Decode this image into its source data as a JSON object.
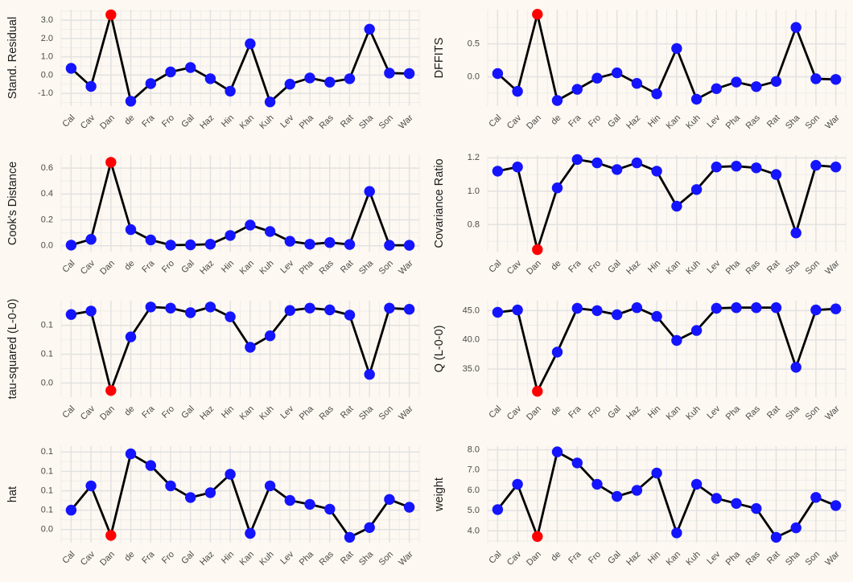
{
  "page": {
    "background_color": "#fdf8f1",
    "description": "Grid of 8 leave-one-out influence diagnostic line plots with one highlighted case (Dan)"
  },
  "style": {
    "point_color": "#1414ff",
    "highlight_color": "#ff0000",
    "line_color": "#000000",
    "grid_major_color": "#e2e2e2",
    "grid_minor_color": "#ededed",
    "tick_label_color": "#4a4a4a",
    "axis_title_color": "#1a1a1a"
  },
  "highlight_category": "Dan",
  "categories": [
    "Cal",
    "Cav",
    "Dan",
    "de",
    "Fra",
    "Fro",
    "Gal",
    "Haz",
    "Hin",
    "Kan",
    "Kuh",
    "Lev",
    "Pha",
    "Ras",
    "Rat",
    "Sha",
    "Son",
    "War"
  ],
  "chart_data": [
    {
      "type": "line",
      "ylabel": "Stand. Residual",
      "categories": [
        "Cal",
        "Cav",
        "Dan",
        "de",
        "Fra",
        "Fro",
        "Gal",
        "Haz",
        "Hin",
        "Kan",
        "Kuh",
        "Lev",
        "Pha",
        "Ras",
        "Rat",
        "Sha",
        "Son",
        "War"
      ],
      "values": [
        0.37,
        -0.62,
        3.3,
        -1.43,
        -0.47,
        0.17,
        0.41,
        -0.2,
        -0.88,
        1.71,
        -1.47,
        -0.5,
        -0.16,
        -0.39,
        -0.2,
        2.51,
        0.11,
        0.08
      ],
      "highlight_index": 2,
      "yticks": [
        {
          "v": -1,
          "label": "-1.0"
        },
        {
          "v": 0,
          "label": "0.0"
        },
        {
          "v": 1,
          "label": "1.0"
        },
        {
          "v": 2,
          "label": "2.0"
        },
        {
          "v": 3,
          "label": "3.0"
        }
      ],
      "ylim": [
        -1.7,
        3.58
      ],
      "grid": true,
      "legend": false
    },
    {
      "type": "line",
      "ylabel": "DFFITS",
      "categories": [
        "Cal",
        "Cav",
        "Dan",
        "de",
        "Fra",
        "Fro",
        "Gal",
        "Haz",
        "Hin",
        "Kan",
        "Kuh",
        "Lev",
        "Pha",
        "Ras",
        "Rat",
        "Sha",
        "Son",
        "War"
      ],
      "values": [
        0.05,
        -0.22,
        0.95,
        -0.36,
        -0.19,
        -0.02,
        0.06,
        -0.1,
        -0.26,
        0.43,
        -0.34,
        -0.18,
        -0.08,
        -0.15,
        -0.07,
        0.75,
        -0.03,
        -0.04
      ],
      "highlight_index": 2,
      "yticks": [
        {
          "v": 0,
          "label": "0.0"
        },
        {
          "v": 0.5,
          "label": "0.5"
        }
      ],
      "ylim": [
        -0.445,
        1.02
      ],
      "grid": true,
      "legend": false
    },
    {
      "type": "line",
      "ylabel": "Cook's Distance",
      "categories": [
        "Cal",
        "Cav",
        "Dan",
        "de",
        "Fra",
        "Fro",
        "Gal",
        "Haz",
        "Hin",
        "Kan",
        "Kuh",
        "Lev",
        "Pha",
        "Ras",
        "Rat",
        "Sha",
        "Son",
        "War"
      ],
      "values": [
        0.005,
        0.05,
        0.645,
        0.125,
        0.045,
        0.005,
        0.007,
        0.012,
        0.08,
        0.16,
        0.11,
        0.035,
        0.012,
        0.025,
        0.01,
        0.42,
        0.004,
        0.004
      ],
      "highlight_index": 2,
      "yticks": [
        {
          "v": 0,
          "label": "0.0"
        },
        {
          "v": 0.2,
          "label": "0.2"
        },
        {
          "v": 0.4,
          "label": "0.4"
        },
        {
          "v": 0.6,
          "label": "0.6"
        }
      ],
      "ylim": [
        -0.045,
        0.7
      ],
      "grid": true,
      "legend": false
    },
    {
      "type": "line",
      "ylabel": "Covariance Ratio",
      "categories": [
        "Cal",
        "Cav",
        "Dan",
        "de",
        "Fra",
        "Fro",
        "Gal",
        "Haz",
        "Hin",
        "Kan",
        "Kuh",
        "Lev",
        "Pha",
        "Ras",
        "Rat",
        "Sha",
        "Son",
        "War"
      ],
      "values": [
        1.12,
        1.145,
        0.65,
        1.02,
        1.19,
        1.17,
        1.13,
        1.17,
        1.12,
        0.91,
        1.01,
        1.145,
        1.15,
        1.14,
        1.1,
        0.75,
        1.155,
        1.145
      ],
      "highlight_index": 2,
      "yticks": [
        {
          "v": 0.8,
          "label": "0.8"
        },
        {
          "v": 1.0,
          "label": "1.0"
        },
        {
          "v": 1.2,
          "label": "1.2"
        }
      ],
      "ylim": [
        0.638,
        1.216
      ],
      "grid": true,
      "legend": false
    },
    {
      "type": "line",
      "ylabel": "tau-squared (L-0-0)",
      "categories": [
        "Cal",
        "Cav",
        "Dan",
        "de",
        "Fra",
        "Fro",
        "Gal",
        "Haz",
        "Hin",
        "Kan",
        "Kuh",
        "Lev",
        "Pha",
        "Ras",
        "Rat",
        "Sha",
        "Son",
        "War"
      ],
      "values": [
        0.119,
        0.125,
        -0.013,
        0.08,
        0.132,
        0.13,
        0.122,
        0.132,
        0.115,
        0.062,
        0.082,
        0.126,
        0.13,
        0.127,
        0.118,
        0.015,
        0.13,
        0.128
      ],
      "highlight_index": 2,
      "yticks": [
        {
          "v": 0,
          "label": "0.0"
        },
        {
          "v": 0.05,
          "label": "0.1"
        },
        {
          "v": 0.1,
          "label": "0.1"
        }
      ],
      "ylim": [
        -0.0245,
        0.143
      ],
      "grid": true,
      "legend": false
    },
    {
      "type": "line",
      "ylabel": "Q (L-0-0)",
      "categories": [
        "Cal",
        "Cav",
        "Dan",
        "de",
        "Fra",
        "Fro",
        "Gal",
        "Haz",
        "Hin",
        "Kan",
        "Kuh",
        "Lev",
        "Pha",
        "Ras",
        "Rat",
        "Sha",
        "Son",
        "War"
      ],
      "values": [
        44.7,
        45.1,
        31.2,
        37.9,
        45.4,
        45.0,
        44.3,
        45.5,
        44.0,
        39.9,
        41.6,
        45.4,
        45.5,
        45.5,
        45.5,
        35.3,
        45.1,
        45.3
      ],
      "highlight_index": 2,
      "yticks": [
        {
          "v": 35,
          "label": "35.0"
        },
        {
          "v": 40,
          "label": "40.0"
        },
        {
          "v": 45,
          "label": "45.0"
        }
      ],
      "ylim": [
        30.2,
        46.7
      ],
      "grid": true,
      "legend": false
    },
    {
      "type": "line",
      "ylabel": "hat",
      "categories": [
        "Cal",
        "Cav",
        "Dan",
        "de",
        "Fra",
        "Fro",
        "Gal",
        "Haz",
        "Hin",
        "Kan",
        "Kuh",
        "Lev",
        "Pha",
        "Ras",
        "Rat",
        "Sha",
        "Son",
        "War"
      ],
      "values": [
        0.06,
        0.085,
        0.034,
        0.118,
        0.106,
        0.085,
        0.073,
        0.078,
        0.097,
        0.036,
        0.085,
        0.07,
        0.066,
        0.061,
        0.032,
        0.042,
        0.071,
        0.063
      ],
      "highlight_index": 2,
      "yticks": [
        {
          "v": 0.04,
          "label": "0.0"
        },
        {
          "v": 0.06,
          "label": "0.1"
        },
        {
          "v": 0.08,
          "label": "0.1"
        },
        {
          "v": 0.1,
          "label": "0.1"
        },
        {
          "v": 0.12,
          "label": "0.1"
        }
      ],
      "ylim": [
        0.0265,
        0.126
      ],
      "grid": true,
      "legend": false
    },
    {
      "type": "line",
      "ylabel": "weight",
      "categories": [
        "Cal",
        "Cav",
        "Dan",
        "de",
        "Fra",
        "Fro",
        "Gal",
        "Haz",
        "Hin",
        "Kan",
        "Kuh",
        "Lev",
        "Pha",
        "Ras",
        "Rat",
        "Sha",
        "Son",
        "War"
      ],
      "values": [
        5.05,
        6.3,
        3.72,
        7.9,
        7.35,
        6.3,
        5.7,
        6.0,
        6.85,
        3.9,
        6.3,
        5.6,
        5.35,
        5.1,
        3.68,
        4.15,
        5.65,
        5.25
      ],
      "highlight_index": 2,
      "yticks": [
        {
          "v": 4,
          "label": "4.0"
        },
        {
          "v": 5,
          "label": "5.0"
        },
        {
          "v": 6,
          "label": "6.0"
        },
        {
          "v": 7,
          "label": "7.0"
        },
        {
          "v": 8,
          "label": "8.0"
        }
      ],
      "ylim": [
        3.42,
        8.18
      ],
      "grid": true,
      "legend": false
    }
  ]
}
